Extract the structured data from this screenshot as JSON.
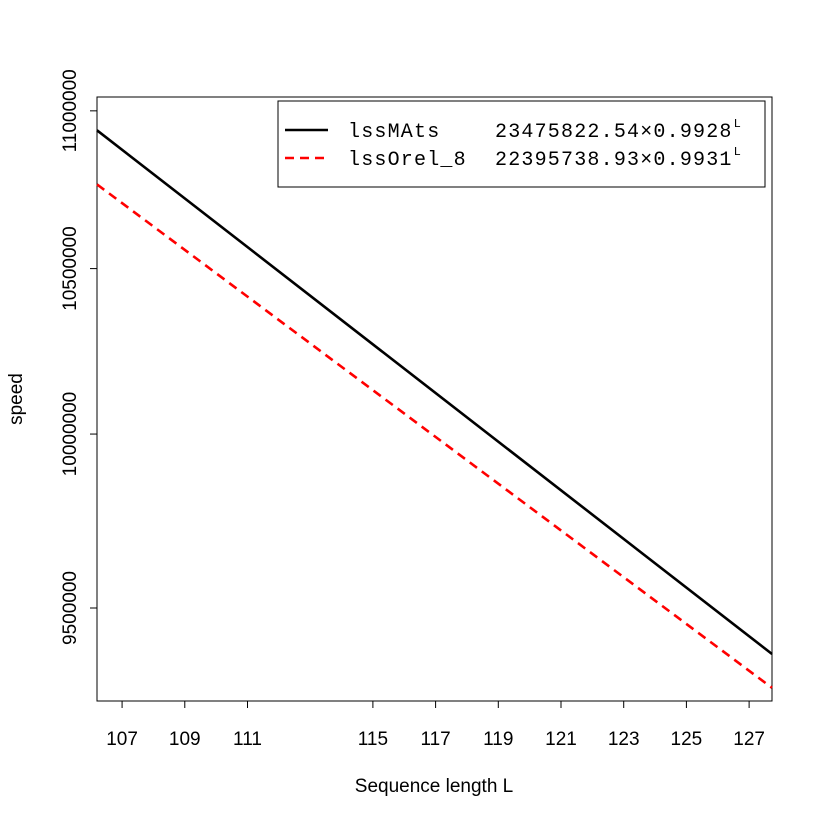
{
  "chart_data": {
    "type": "line",
    "x_label": "Sequence length L",
    "y_label": "speed",
    "x": [
      106.2,
      127.73
    ],
    "series": [
      {
        "name": "lssMAts",
        "fit": "23475822.54×0.9928",
        "fit_exponent": "L",
        "color": "#000000",
        "dash": "solid",
        "values": [
          10937000,
          9372000
        ]
      },
      {
        "name": "lssOrel_8",
        "fit": "22395738.93×0.9931",
        "fit_exponent": "L",
        "color": "#ff0000",
        "dash": "dashed",
        "values": [
          10764000,
          9279000
        ]
      }
    ],
    "xlim": [
      106.2,
      127.73
    ],
    "xticks": [
      107,
      109,
      111,
      115,
      117,
      119,
      121,
      123,
      125,
      127
    ],
    "ylim": [
      9243000,
      11045000
    ],
    "yticks": [
      9500000,
      10000000,
      10500000,
      11000000
    ],
    "y_log": true,
    "legend": "top-right"
  }
}
